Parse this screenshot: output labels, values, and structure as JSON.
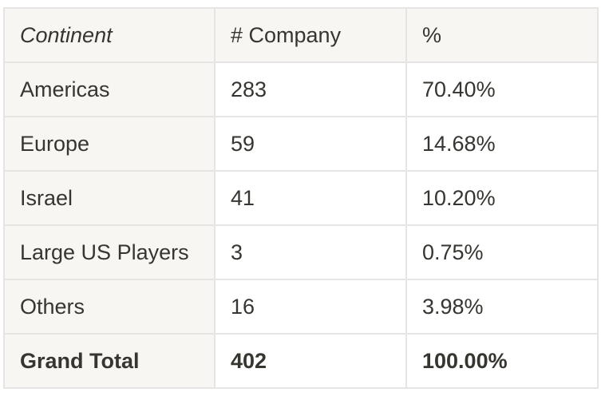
{
  "table": {
    "headers": [
      "Continent",
      "# Company",
      "%"
    ],
    "rows": [
      [
        "Americas",
        "283",
        "70.40%"
      ],
      [
        "Europe",
        "59",
        "14.68%"
      ],
      [
        "Israel",
        "41",
        "10.20%"
      ],
      [
        "Large US Players",
        "3",
        "0.75%"
      ],
      [
        "Others",
        "16",
        "3.98%"
      ]
    ],
    "total": [
      "Grand Total",
      "402",
      "100.00%"
    ]
  }
}
